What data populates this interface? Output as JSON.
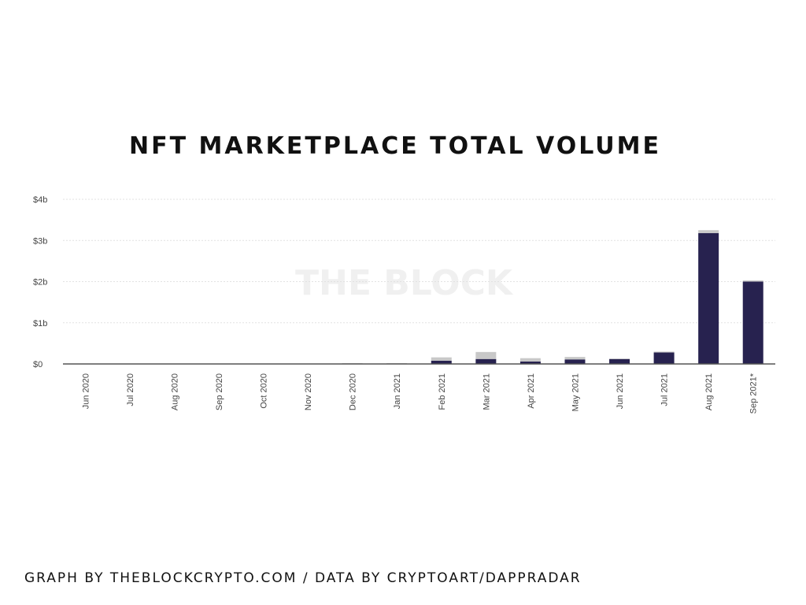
{
  "title": "NFT MARKETPLACE TOTAL VOLUME",
  "watermark": "THE BLOCK",
  "footer": "GRAPH BY THEBLOCKCRYPTO.COM / DATA BY CRYPTOART/DAPPRADAR",
  "colors": {
    "primary": "#27224f",
    "secondary": "#c8c8c8",
    "grid": "#e2e2e2",
    "axis": "#555555"
  },
  "chart_data": {
    "type": "bar",
    "stacked": true,
    "categories": [
      "Jun 2020",
      "Jul 2020",
      "Aug 2020",
      "Sep 2020",
      "Oct 2020",
      "Nov 2020",
      "Dec 2020",
      "Jan 2021",
      "Feb 2021",
      "Mar 2021",
      "Apr 2021",
      "May 2021",
      "Jun 2021",
      "Jul 2021",
      "Aug 2021",
      "Sep 2021*"
    ],
    "series": [
      {
        "values": [
          0,
          0,
          0,
          0,
          0,
          0,
          0.01,
          0.01,
          0.08,
          0.12,
          0.06,
          0.11,
          0.12,
          0.28,
          3.18,
          2.0
        ]
      },
      {
        "values": [
          0,
          0,
          0,
          0,
          0,
          0,
          0.01,
          0.01,
          0.08,
          0.17,
          0.08,
          0.06,
          0.01,
          0.02,
          0.07,
          0.03
        ]
      }
    ],
    "yticks": [
      "$0",
      "$1b",
      "$2b",
      "$3b",
      "$4b"
    ],
    "ylim": [
      0,
      4
    ],
    "grid": true,
    "legend": "none"
  }
}
